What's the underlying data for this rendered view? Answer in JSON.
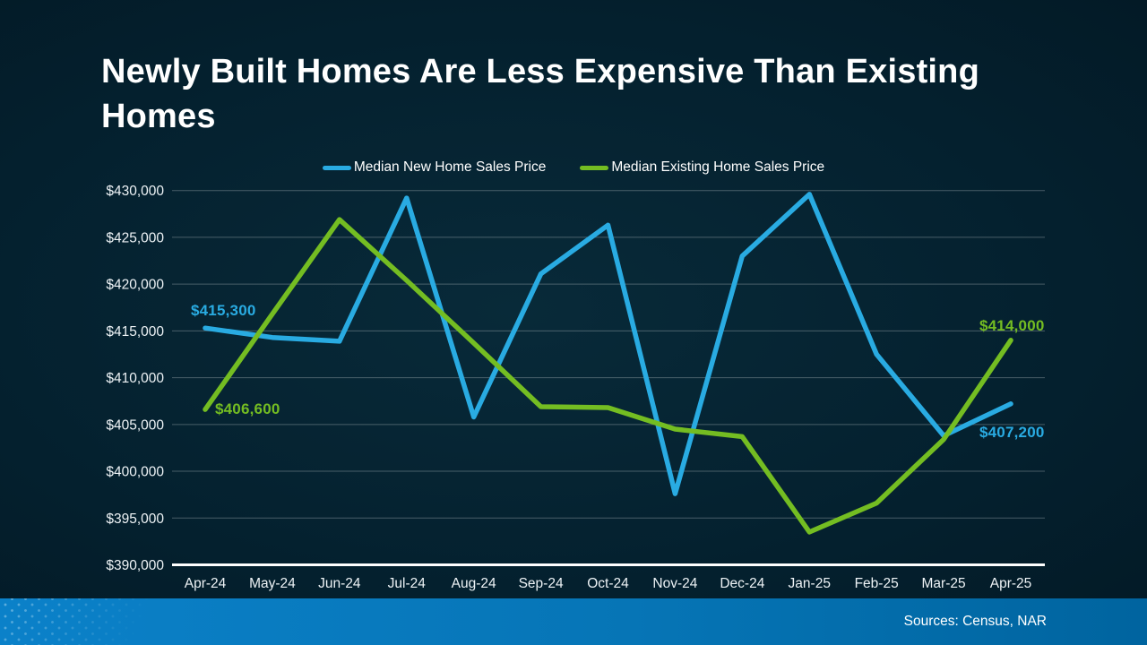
{
  "header": {
    "title": "Newly Built Homes Are Less Expensive Than Existing Homes"
  },
  "footer": {
    "sources": "Sources: Census, NAR"
  },
  "chart_data": {
    "type": "line",
    "title": "Newly Built Homes Are Less Expensive Than Existing Homes",
    "categories": [
      "Apr-24",
      "May-24",
      "Jun-24",
      "Jul-24",
      "Aug-24",
      "Sep-24",
      "Oct-24",
      "Nov-24",
      "Dec-24",
      "Jan-25",
      "Feb-25",
      "Mar-25",
      "Apr-25"
    ],
    "series": [
      {
        "name": "Median New Home Sales Price",
        "color": "#29abe2",
        "values": [
          415300,
          414300,
          413900,
          429200,
          405800,
          421100,
          426300,
          397600,
          423000,
          429600,
          412500,
          403800,
          407200
        ]
      },
      {
        "name": "Median Existing Home Sales Price",
        "color": "#74bd22",
        "values": [
          406600,
          416800,
          426900,
          420400,
          413700,
          406900,
          406800,
          404500,
          403700,
          393500,
          396600,
          403400,
          414000
        ]
      }
    ],
    "xlabel": "",
    "ylabel": "",
    "ylim": [
      390000,
      430000
    ],
    "y_tick_step": 5000,
    "grid": true,
    "legend_position": "top",
    "y_ticks": [
      {
        "value": 430000,
        "label": "$430,000"
      },
      {
        "value": 425000,
        "label": "$425,000"
      },
      {
        "value": 420000,
        "label": "$420,000"
      },
      {
        "value": 415000,
        "label": "$415,000"
      },
      {
        "value": 410000,
        "label": "$410,000"
      },
      {
        "value": 405000,
        "label": "$405,000"
      },
      {
        "value": 400000,
        "label": "$400,000"
      },
      {
        "value": 395000,
        "label": "$395,000"
      },
      {
        "value": 390000,
        "label": "$390,000"
      }
    ],
    "annotations": [
      {
        "id": "new-start",
        "series": "Median New Home Sales Price",
        "category": "Apr-24",
        "text": "$415,300",
        "color": "#29abe2"
      },
      {
        "id": "existing-start",
        "series": "Median Existing Home Sales Price",
        "category": "Apr-24",
        "text": "$406,600",
        "color": "#74bd22"
      },
      {
        "id": "existing-end",
        "series": "Median Existing Home Sales Price",
        "category": "Apr-25",
        "text": "$414,000",
        "color": "#74bd22"
      },
      {
        "id": "new-end",
        "series": "Median New Home Sales Price",
        "category": "Apr-25",
        "text": "$407,200",
        "color": "#29abe2"
      }
    ]
  }
}
